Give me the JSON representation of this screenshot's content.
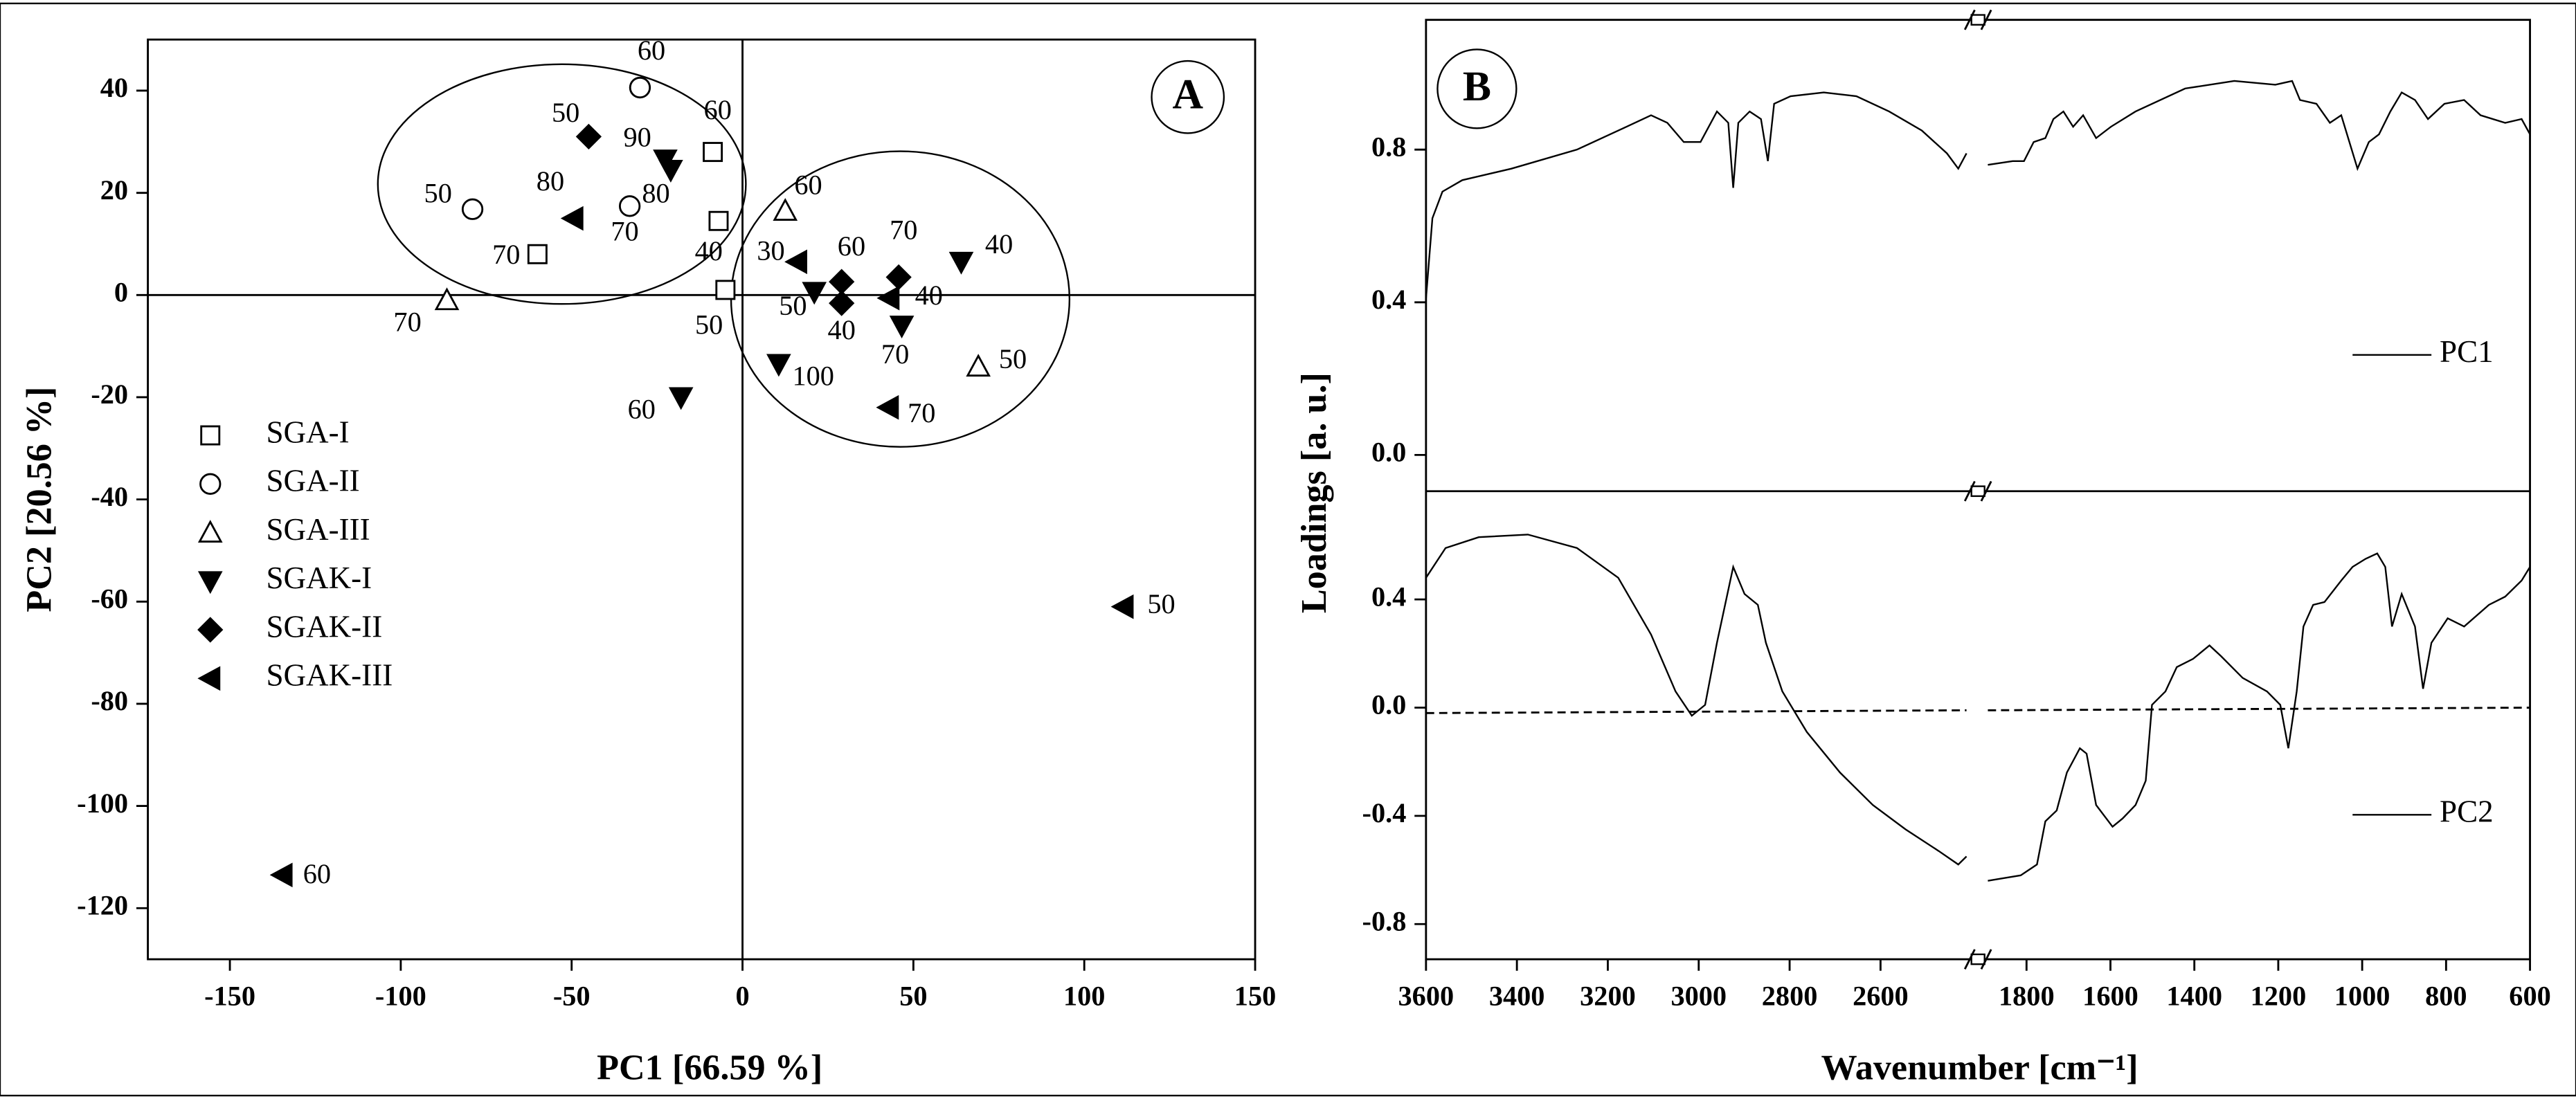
{
  "chart_data": [
    {
      "type": "scatter",
      "label": "A",
      "xlabel": "PC1 [66.59 %]",
      "ylabel": "PC2 [20.56 %]",
      "xlim": [
        -174,
        150
      ],
      "ylim": [
        -130,
        50
      ],
      "xticks": [
        -150,
        -100,
        -50,
        0,
        50,
        100,
        150
      ],
      "yticks": [
        -120,
        -100,
        -80,
        -60,
        -40,
        -20,
        0,
        20,
        40
      ],
      "legend": "left",
      "series": [
        {
          "name": "SGA-I",
          "marker": "square",
          "filled": false,
          "color": "#000000",
          "x": [
            -8.7,
            -7,
            -60,
            -5
          ],
          "values": [
            28,
            14.5,
            8,
            1
          ],
          "point_labels": [
            "60",
            "40",
            "70",
            "50"
          ]
        },
        {
          "name": "SGA-II",
          "marker": "circle",
          "filled": false,
          "color": "#000000",
          "x": [
            -30,
            -79,
            -33
          ],
          "values": [
            40.6,
            16.8,
            17.4
          ],
          "point_labels": [
            "60",
            "50",
            "70"
          ]
        },
        {
          "name": "SGA-III",
          "marker": "triangle-up",
          "filled": false,
          "color": "#000000",
          "x": [
            -86.5,
            12.5,
            69
          ],
          "values": [
            -1,
            16.5,
            -14
          ],
          "point_labels": [
            "70",
            "60",
            "50"
          ]
        },
        {
          "name": "SGAK-I",
          "marker": "triangle-down",
          "filled": true,
          "color": "#000000",
          "x": [
            -22.6,
            -21,
            -18,
            21,
            10.6,
            46.6,
            64
          ],
          "values": [
            26.5,
            24.5,
            -20,
            0.6,
            -13.5,
            -6,
            6.5
          ],
          "point_labels": [
            "90",
            "80",
            "60",
            "50",
            "100",
            "70",
            "40"
          ]
        },
        {
          "name": "SGAK-II",
          "marker": "diamond",
          "filled": true,
          "color": "#000000",
          "x": [
            -45,
            29,
            45.7,
            29
          ],
          "values": [
            31,
            2.6,
            3.5,
            -1.6
          ],
          "point_labels": [
            "50",
            "60",
            "70",
            "40"
          ]
        },
        {
          "name": "SGAK-III",
          "marker": "triangle-left",
          "filled": true,
          "color": "#000000",
          "x": [
            -49.5,
            16,
            43,
            42.8,
            111.5,
            -134.6
          ],
          "values": [
            15,
            6.5,
            -0.6,
            -22,
            -61,
            -113.5
          ],
          "point_labels": [
            "80",
            "30",
            "40",
            "70",
            "50",
            "60"
          ]
        }
      ]
    },
    {
      "type": "line",
      "label": "B",
      "xlabel": "Wavenumber [cm⁻¹]",
      "ylabel": "Loadings [a. u.]",
      "xlim": [
        3600,
        600
      ],
      "xbreak": [
        2400,
        1900
      ],
      "xticks": [
        3600,
        3400,
        3200,
        3000,
        2800,
        2600,
        1800,
        1600,
        1400,
        1200,
        1000,
        800,
        600
      ],
      "legend": "right",
      "subplots": [
        {
          "ylim": [
            -0.095,
            1.14
          ],
          "yticks": [
            {
              "value": 0,
              "label": "0.0"
            },
            0.4,
            0.8
          ],
          "series": [
            {
              "name": "PC1",
              "color": "#000000",
              "x": [
                3600,
                3586,
                3564,
                3520,
                3412,
                3268,
                3159,
                3105,
                3069,
                3033,
                2996,
                2960,
                2935,
                2924,
                2913,
                2888,
                2863,
                2848,
                2834,
                2798,
                2725,
                2653,
                2581,
                2509,
                2454,
                2429,
                2411,
                1892,
                1833,
                1806,
                1783,
                1755,
                1736,
                1712,
                1689,
                1665,
                1634,
                1599,
                1540,
                1422,
                1305,
                1207,
                1167,
                1148,
                1109,
                1077,
                1050,
                1011,
                984,
                960,
                933,
                906,
                874,
                843,
                804,
                757,
                718,
                659,
                620,
                600
              ],
              "values": [
                0.41,
                0.62,
                0.69,
                0.72,
                0.75,
                0.8,
                0.86,
                0.89,
                0.87,
                0.82,
                0.82,
                0.9,
                0.87,
                0.7,
                0.87,
                0.9,
                0.88,
                0.77,
                0.92,
                0.94,
                0.95,
                0.94,
                0.9,
                0.85,
                0.79,
                0.75,
                0.79,
                0.76,
                0.77,
                0.77,
                0.82,
                0.83,
                0.88,
                0.9,
                0.86,
                0.89,
                0.83,
                0.86,
                0.9,
                0.96,
                0.98,
                0.97,
                0.98,
                0.93,
                0.92,
                0.87,
                0.89,
                0.75,
                0.82,
                0.84,
                0.9,
                0.95,
                0.93,
                0.88,
                0.92,
                0.93,
                0.89,
                0.87,
                0.88,
                0.84
              ]
            }
          ]
        },
        {
          "ylim": [
            -0.93,
            0.8
          ],
          "yticks": [
            -0.8,
            -0.4,
            {
              "value": 0,
              "label": "0.0"
            },
            0.4
          ],
          "series": [
            {
              "name": "PC2",
              "color": "#000000",
              "x": [
                3600,
                3557,
                3484,
                3376,
                3268,
                3177,
                3105,
                3051,
                3015,
                2986,
                2960,
                2924,
                2899,
                2870,
                2852,
                2816,
                2762,
                2689,
                2617,
                2545,
                2472,
                2429,
                2411,
                1892,
                1814,
                1775,
                1755,
                1728,
                1704,
                1673,
                1657,
                1634,
                1595,
                1571,
                1540,
                1516,
                1501,
                1469,
                1442,
                1403,
                1364,
                1336,
                1285,
                1227,
                1195,
                1176,
                1156,
                1140,
                1117,
                1090,
                1050,
                1023,
                992,
                964,
                945,
                929,
                906,
                874,
                855,
                835,
                796,
                757,
                698,
                659,
                620,
                600
              ],
              "values": [
                0.48,
                0.59,
                0.63,
                0.64,
                0.59,
                0.48,
                0.27,
                0.06,
                -0.03,
                0.01,
                0.24,
                0.52,
                0.42,
                0.38,
                0.24,
                0.06,
                -0.09,
                -0.24,
                -0.36,
                -0.45,
                -0.53,
                -0.58,
                -0.55,
                -0.64,
                -0.62,
                -0.58,
                -0.42,
                -0.38,
                -0.24,
                -0.15,
                -0.17,
                -0.36,
                -0.44,
                -0.41,
                -0.36,
                -0.27,
                0.01,
                0.06,
                0.15,
                0.18,
                0.23,
                0.19,
                0.11,
                0.06,
                0.01,
                -0.15,
                0.06,
                0.3,
                0.38,
                0.39,
                0.47,
                0.52,
                0.55,
                0.57,
                0.52,
                0.3,
                0.42,
                0.3,
                0.07,
                0.24,
                0.33,
                0.3,
                0.38,
                0.41,
                0.47,
                0.52
              ]
            },
            {
              "dash": true,
              "color": "#000000",
              "x": [
                3600,
                2411,
                1892,
                600
              ],
              "values": [
                -0.02,
                -0.01,
                -0.01,
                0
              ]
            }
          ]
        }
      ]
    }
  ]
}
